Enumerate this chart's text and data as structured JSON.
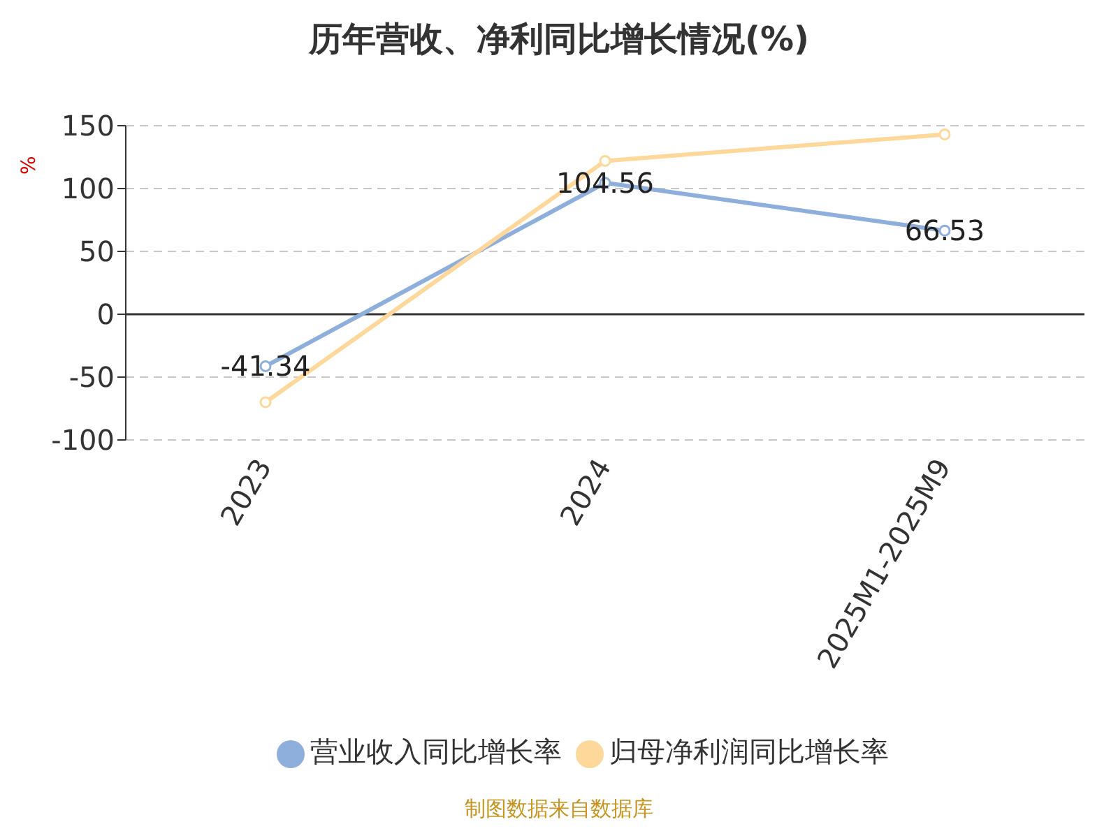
{
  "chart_data": {
    "type": "line",
    "title": "历年营收、净利同比增长情况(%)",
    "ylabel": "%",
    "categories": [
      "2023",
      "2024",
      "2025M1-2025M9"
    ],
    "series": [
      {
        "name": "营业收入同比增长率",
        "color": "#8eaedc",
        "values": [
          -41.34,
          104.56,
          66.53
        ],
        "value_labels": [
          "-41.34",
          "104.56",
          "66.53"
        ]
      },
      {
        "name": "归母净利润同比增长率",
        "color": "#fdd89a",
        "values": [
          -70,
          122,
          143
        ]
      }
    ],
    "ylim": [
      -100,
      150
    ],
    "yticks": [
      -100,
      -50,
      0,
      50,
      100,
      150
    ],
    "grid": "y",
    "legend": "bottom",
    "marker": "circle",
    "line_style": "solid",
    "annotations": [
      "制图数据来自数据库"
    ]
  }
}
